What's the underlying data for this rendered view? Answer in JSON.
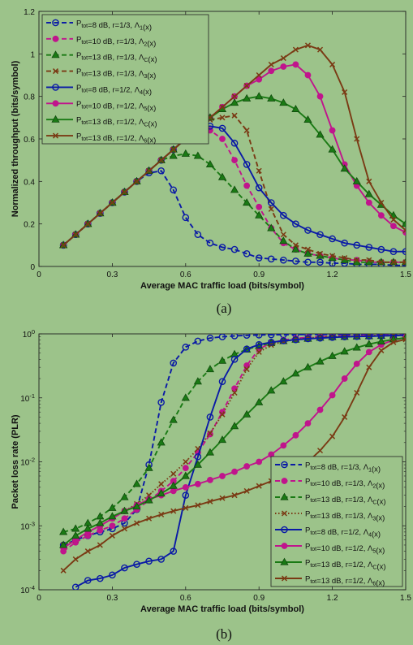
{
  "chart_data": [
    {
      "type": "line",
      "caption": "(a)",
      "xlabel": "Average MAC traffic load (bits/symbol)",
      "ylabel": "Normalized throughput (bits/symbol)",
      "xlim": [
        0,
        1.5
      ],
      "ylim": [
        0,
        1.2
      ],
      "yscale": "linear",
      "xticks": [
        0,
        0.3,
        0.6,
        0.9,
        1.2,
        1.5
      ],
      "xtick_labels": [
        "0",
        "0.3",
        "0.6",
        "0.9",
        "1.2",
        "1.5"
      ],
      "yticks": [
        0,
        0.2,
        0.4,
        0.6,
        0.8,
        1,
        1.2
      ],
      "ytick_labels": [
        "0",
        "0.2",
        "0.4",
        "0.6",
        "0.8",
        "1",
        "1.2"
      ],
      "legend": "top-left",
      "x": [
        0.1,
        0.15,
        0.2,
        0.25,
        0.3,
        0.35,
        0.4,
        0.45,
        0.5,
        0.55,
        0.6,
        0.65,
        0.7,
        0.75,
        0.8,
        0.85,
        0.9,
        0.95,
        1.0,
        1.05,
        1.1,
        1.15,
        1.2,
        1.25,
        1.3,
        1.35,
        1.4,
        1.45,
        1.5
      ],
      "series": [
        {
          "name_main": "P",
          "name_sub": "tot",
          "name_rest": "=8 dB, r=1/3, Λ",
          "name_idx": "1",
          "name_end": "(x)",
          "color": "#0a1aa6",
          "dash": "dashed",
          "marker": "circle-open",
          "values": [
            0.1,
            0.15,
            0.2,
            0.25,
            0.3,
            0.35,
            0.4,
            0.44,
            0.45,
            0.36,
            0.23,
            0.15,
            0.11,
            0.09,
            0.08,
            0.06,
            0.04,
            0.035,
            0.03,
            0.025,
            0.02,
            0.02,
            0.015,
            0.015,
            0.01,
            0.01,
            0.01,
            0.005,
            0.005
          ]
        },
        {
          "name_main": "P",
          "name_sub": "tot",
          "name_rest": "=10 dB, r=1/3, Λ",
          "name_idx": "2",
          "name_end": "(x)",
          "color": "#c0148c",
          "dash": "dashed",
          "marker": "circle-filled",
          "values": [
            0.1,
            0.15,
            0.2,
            0.25,
            0.3,
            0.35,
            0.4,
            0.45,
            0.5,
            0.55,
            0.6,
            0.63,
            0.64,
            0.6,
            0.5,
            0.38,
            0.28,
            0.18,
            0.11,
            0.08,
            0.06,
            0.05,
            0.04,
            0.03,
            0.03,
            0.02,
            0.02,
            0.02,
            0.02
          ]
        },
        {
          "name_main": "P",
          "name_sub": "tot",
          "name_rest": "=13 dB, r=1/3, Λ",
          "name_idx": "C",
          "name_end": "(x)",
          "color": "#1a7a14",
          "dash": "dashed",
          "marker": "triangle-filled",
          "values": [
            0.1,
            0.15,
            0.2,
            0.25,
            0.3,
            0.35,
            0.4,
            0.45,
            0.5,
            0.52,
            0.53,
            0.52,
            0.48,
            0.42,
            0.36,
            0.3,
            0.24,
            0.18,
            0.12,
            0.08,
            0.06,
            0.05,
            0.04,
            0.03,
            0.02,
            0.02,
            0.02,
            0.02,
            0.02
          ]
        },
        {
          "name_main": "",
          "name_sub": "",
          "name_rest": "P",
          "name_idx": "",
          "name_end": "=13 dB, r=1/3, Λ3(x)",
          "legend_text": "P_tot=13 dB, r=1/3, Λ_3(x)",
          "color": "#7a3a14",
          "dash": "dashed",
          "marker": "x",
          "values": [
            0.1,
            0.15,
            0.2,
            0.25,
            0.3,
            0.35,
            0.4,
            0.45,
            0.5,
            0.55,
            0.6,
            0.65,
            0.69,
            0.7,
            0.71,
            0.64,
            0.45,
            0.27,
            0.15,
            0.1,
            0.08,
            0.06,
            0.05,
            0.04,
            0.03,
            0.03,
            0.02,
            0.02,
            0.02
          ]
        },
        {
          "name_main": "P",
          "name_sub": "tot",
          "name_rest": "=8 dB, r=1/2, Λ",
          "name_idx": "4",
          "name_end": "(x)",
          "color": "#0a1aa6",
          "dash": "solid",
          "marker": "circle-open",
          "values": [
            0.1,
            0.15,
            0.2,
            0.25,
            0.3,
            0.35,
            0.4,
            0.45,
            0.5,
            0.55,
            0.6,
            0.65,
            0.66,
            0.65,
            0.58,
            0.48,
            0.37,
            0.3,
            0.24,
            0.2,
            0.17,
            0.15,
            0.13,
            0.11,
            0.1,
            0.09,
            0.08,
            0.07,
            0.07
          ]
        },
        {
          "name_main": "P",
          "name_sub": "tot",
          "name_rest": "=10 dB, r=1/2, Λ",
          "name_idx": "5",
          "name_end": "(x)",
          "color": "#c0148c",
          "dash": "solid",
          "marker": "circle-filled",
          "values": [
            0.1,
            0.15,
            0.2,
            0.25,
            0.3,
            0.35,
            0.4,
            0.45,
            0.5,
            0.55,
            0.6,
            0.65,
            0.7,
            0.75,
            0.8,
            0.85,
            0.88,
            0.92,
            0.94,
            0.95,
            0.9,
            0.8,
            0.64,
            0.48,
            0.38,
            0.3,
            0.24,
            0.19,
            0.16
          ]
        },
        {
          "name_main": "P",
          "name_sub": "tot",
          "name_rest": "=13 dB, r=1/2, Λ",
          "name_idx": "C",
          "name_end": "(x)",
          "color": "#1a7a14",
          "dash": "solid",
          "marker": "triangle-filled",
          "values": [
            0.1,
            0.15,
            0.2,
            0.25,
            0.3,
            0.35,
            0.4,
            0.45,
            0.5,
            0.55,
            0.6,
            0.65,
            0.7,
            0.74,
            0.77,
            0.79,
            0.8,
            0.79,
            0.77,
            0.74,
            0.69,
            0.62,
            0.55,
            0.46,
            0.4,
            0.34,
            0.29,
            0.24,
            0.2
          ]
        },
        {
          "name_main": "P",
          "name_sub": "tot",
          "name_rest": "=13 dB, r=1/2, Λ",
          "name_idx": "6",
          "name_end": "(x)",
          "color": "#7a3a14",
          "dash": "solid",
          "marker": "x",
          "values": [
            0.1,
            0.15,
            0.2,
            0.25,
            0.3,
            0.35,
            0.4,
            0.45,
            0.5,
            0.55,
            0.6,
            0.65,
            0.7,
            0.75,
            0.8,
            0.85,
            0.9,
            0.95,
            0.98,
            1.02,
            1.04,
            1.02,
            0.95,
            0.82,
            0.6,
            0.4,
            0.3,
            0.22,
            0.17
          ]
        }
      ]
    },
    {
      "type": "line",
      "caption": "(b)",
      "xlabel": "Average MAC traffic load (bits/symbol)",
      "ylabel": "Packet loss rate (PLR)",
      "xlim": [
        0,
        1.5
      ],
      "ylim": [
        0.0001,
        1
      ],
      "yscale": "log",
      "xticks": [
        0,
        0.3,
        0.6,
        0.9,
        1.2,
        1.5
      ],
      "xtick_labels": [
        "0",
        "0.3",
        "0.6",
        "0.9",
        "1.2",
        "1.5"
      ],
      "yticks": [
        0.0001,
        0.001,
        0.01,
        0.1,
        1
      ],
      "ytick_labels": [
        "10^-4",
        "10^-3",
        "10^-2",
        "10^-1",
        "10^0"
      ],
      "legend": "bottom-right",
      "series": [
        {
          "name_main": "",
          "name_sub": "",
          "name_rest": "P",
          "name_idx": "",
          "name_end": "",
          "legend_text": "P_tot=8 dB, r=1/3, Λ_1(x)",
          "color": "#0a1aa6",
          "dash": "dashed",
          "marker": "circle-open",
          "x": [
            0.1,
            0.15,
            0.2,
            0.25,
            0.3,
            0.35,
            0.4,
            0.45,
            0.5,
            0.55,
            0.6,
            0.65,
            0.7,
            0.75,
            0.8,
            0.85,
            0.9,
            0.95,
            1.0,
            1.05,
            1.1,
            1.15,
            1.2,
            1.25,
            1.3,
            1.35,
            1.4,
            1.45,
            1.5
          ],
          "values": [
            0.0005,
            0.0006,
            0.0007,
            0.0008,
            0.0009,
            0.0011,
            0.0018,
            0.009,
            0.085,
            0.35,
            0.62,
            0.77,
            0.86,
            0.9,
            0.93,
            0.95,
            0.96,
            0.97,
            0.97,
            0.975,
            0.98,
            0.98,
            0.98,
            0.985,
            0.985,
            0.99,
            0.99,
            0.99,
            0.99
          ]
        },
        {
          "name_main": "P",
          "name_sub": "tot",
          "name_rest": "=10 dB, r=1/3, Λ",
          "name_idx": "2",
          "name_end": "(x)",
          "color": "#c0148c",
          "dash": "dashed",
          "marker": "circle-filled",
          "x": [
            0.1,
            0.15,
            0.2,
            0.25,
            0.3,
            0.35,
            0.4,
            0.45,
            0.5,
            0.55,
            0.6,
            0.65,
            0.7,
            0.75,
            0.8,
            0.85,
            0.9,
            0.95,
            1.0,
            1.05,
            1.1,
            1.15,
            1.2,
            1.25,
            1.3,
            1.35,
            1.4,
            1.45,
            1.5
          ],
          "values": [
            0.0004,
            0.00055,
            0.0007,
            0.00085,
            0.001,
            0.0013,
            0.0018,
            0.0025,
            0.0035,
            0.005,
            0.008,
            0.014,
            0.027,
            0.06,
            0.14,
            0.32,
            0.58,
            0.72,
            0.8,
            0.85,
            0.88,
            0.9,
            0.92,
            0.93,
            0.94,
            0.95,
            0.95,
            0.96,
            0.96
          ]
        },
        {
          "name_main": "P",
          "name_sub": "tot",
          "name_rest": "=13 dB, r=1/3, Λ",
          "name_idx": "C",
          "name_end": "(x)",
          "color": "#1a7a14",
          "dash": "dashed",
          "marker": "triangle-filled",
          "x": [
            0.1,
            0.15,
            0.2,
            0.25,
            0.3,
            0.35,
            0.4,
            0.45,
            0.5,
            0.55,
            0.6,
            0.65,
            0.7,
            0.75,
            0.8,
            0.85,
            0.9,
            0.95,
            1.0,
            1.05,
            1.1,
            1.15,
            1.2,
            1.25,
            1.3,
            1.35,
            1.4,
            1.45,
            1.5
          ],
          "values": [
            0.0008,
            0.0009,
            0.0011,
            0.0014,
            0.0019,
            0.0028,
            0.0045,
            0.008,
            0.02,
            0.045,
            0.1,
            0.18,
            0.28,
            0.38,
            0.48,
            0.57,
            0.65,
            0.72,
            0.77,
            0.81,
            0.84,
            0.87,
            0.89,
            0.9,
            0.91,
            0.92,
            0.93,
            0.94,
            0.95
          ]
        },
        {
          "name_main": "",
          "name_sub": "",
          "name_rest": "P",
          "name_idx": "",
          "name_end": "",
          "legend_text": "P_tot=13 dB, r=1/3, Λ_3(x)",
          "color": "#7a3a14",
          "dash": "dotted",
          "marker": "x",
          "x": [
            0.1,
            0.15,
            0.2,
            0.25,
            0.3,
            0.35,
            0.4,
            0.45,
            0.5,
            0.55,
            0.6,
            0.65,
            0.7,
            0.75,
            0.8,
            0.85,
            0.9,
            0.95,
            1.0,
            1.05,
            1.1,
            1.15,
            1.2,
            1.25,
            1.3,
            1.35,
            1.4,
            1.45,
            1.5
          ],
          "values": [
            0.0005,
            0.0006,
            0.0008,
            0.001,
            0.0013,
            0.0017,
            0.0022,
            0.003,
            0.0045,
            0.0065,
            0.01,
            0.016,
            0.028,
            0.055,
            0.12,
            0.28,
            0.52,
            0.67,
            0.76,
            0.82,
            0.86,
            0.89,
            0.91,
            0.92,
            0.93,
            0.94,
            0.95,
            0.95,
            0.96
          ]
        },
        {
          "name_main": "P",
          "name_sub": "tot",
          "name_rest": "=8 dB, r=1/2, Λ",
          "name_idx": "4",
          "name_end": "(x)",
          "color": "#0a1aa6",
          "dash": "solid",
          "marker": "circle-open",
          "x": [
            0.15,
            0.2,
            0.25,
            0.3,
            0.35,
            0.4,
            0.45,
            0.5,
            0.55,
            0.6,
            0.65,
            0.7,
            0.75,
            0.8,
            0.85,
            0.9,
            0.95,
            1.0,
            1.05,
            1.1,
            1.15,
            1.2,
            1.25,
            1.3,
            1.35,
            1.4,
            1.45,
            1.5
          ],
          "values": [
            0.00011,
            0.00014,
            0.00015,
            0.00017,
            0.00022,
            0.00025,
            0.00028,
            0.0003,
            0.0004,
            0.003,
            0.012,
            0.05,
            0.18,
            0.4,
            0.58,
            0.68,
            0.74,
            0.78,
            0.81,
            0.84,
            0.86,
            0.88,
            0.9,
            0.91,
            0.92,
            0.93,
            0.94,
            0.95
          ]
        },
        {
          "name_main": "P",
          "name_sub": "tot",
          "name_rest": "=10 dB, r=1/2, Λ",
          "name_idx": "5",
          "name_end": "(x)",
          "color": "#c0148c",
          "dash": "solid",
          "marker": "circle-filled",
          "x": [
            0.1,
            0.15,
            0.2,
            0.25,
            0.3,
            0.35,
            0.4,
            0.45,
            0.5,
            0.55,
            0.6,
            0.65,
            0.7,
            0.75,
            0.8,
            0.85,
            0.9,
            0.95,
            1.0,
            1.05,
            1.1,
            1.15,
            1.2,
            1.25,
            1.3,
            1.35,
            1.4,
            1.45,
            1.5
          ],
          "values": [
            0.00045,
            0.0006,
            0.0008,
            0.001,
            0.0013,
            0.0017,
            0.0021,
            0.0026,
            0.003,
            0.0035,
            0.004,
            0.0045,
            0.0052,
            0.006,
            0.007,
            0.0085,
            0.01,
            0.013,
            0.018,
            0.026,
            0.04,
            0.065,
            0.11,
            0.2,
            0.34,
            0.52,
            0.68,
            0.8,
            0.88
          ]
        },
        {
          "name_main": "P",
          "name_sub": "tot",
          "name_rest": "=13 dB, r=1/2, Λ",
          "name_idx": "C",
          "name_end": "(x)",
          "color": "#1a7a14",
          "dash": "solid",
          "marker": "triangle-filled",
          "x": [
            0.1,
            0.15,
            0.2,
            0.25,
            0.3,
            0.35,
            0.4,
            0.45,
            0.5,
            0.55,
            0.6,
            0.65,
            0.7,
            0.75,
            0.8,
            0.85,
            0.9,
            0.95,
            1.0,
            1.05,
            1.1,
            1.15,
            1.2,
            1.25,
            1.3,
            1.35,
            1.4,
            1.45,
            1.5
          ],
          "values": [
            0.0005,
            0.0007,
            0.0009,
            0.0011,
            0.0014,
            0.0017,
            0.002,
            0.0025,
            0.0032,
            0.0042,
            0.006,
            0.009,
            0.014,
            0.022,
            0.036,
            0.055,
            0.085,
            0.13,
            0.18,
            0.24,
            0.3,
            0.37,
            0.45,
            0.53,
            0.61,
            0.69,
            0.76,
            0.82,
            0.87
          ]
        },
        {
          "name_main": "P",
          "name_sub": "tot",
          "name_rest": "=13 dB, r=1/2, Λ",
          "name_idx": "6",
          "name_end": "(x)",
          "color": "#7a3a14",
          "dash": "solid",
          "marker": "x",
          "x": [
            0.1,
            0.15,
            0.2,
            0.25,
            0.3,
            0.35,
            0.4,
            0.45,
            0.5,
            0.55,
            0.6,
            0.65,
            0.7,
            0.75,
            0.8,
            0.85,
            0.9,
            0.95,
            1.0,
            1.05,
            1.1,
            1.15,
            1.2,
            1.25,
            1.3,
            1.35,
            1.4,
            1.45,
            1.5
          ],
          "values": [
            0.0002,
            0.0003,
            0.0004,
            0.0005,
            0.0007,
            0.0009,
            0.0011,
            0.0013,
            0.0015,
            0.0017,
            0.0019,
            0.0021,
            0.0024,
            0.0027,
            0.003,
            0.0035,
            0.0042,
            0.005,
            0.0062,
            0.0078,
            0.01,
            0.015,
            0.025,
            0.05,
            0.12,
            0.3,
            0.55,
            0.74,
            0.82
          ]
        }
      ]
    }
  ]
}
